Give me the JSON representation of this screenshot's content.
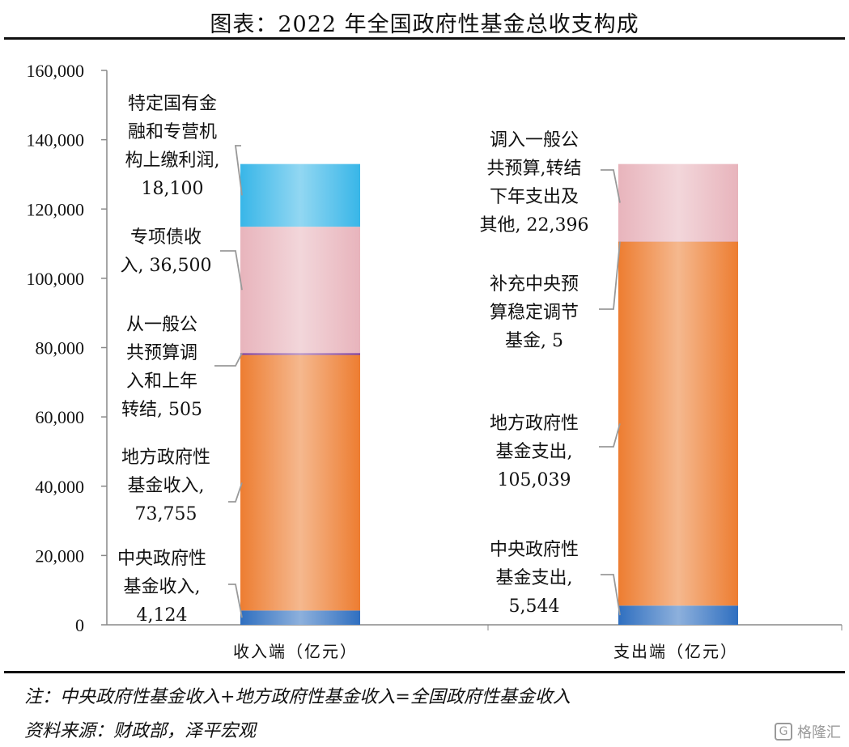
{
  "title": "图表：2022 年全国政府性基金总收支构成",
  "chart_data": {
    "type": "bar",
    "stacked": true,
    "ylim": [
      0,
      160000
    ],
    "yticks": [
      0,
      20000,
      40000,
      60000,
      80000,
      100000,
      120000,
      140000,
      160000
    ],
    "ytick_labels": [
      "0",
      "20,000",
      "40,000",
      "60,000",
      "80,000",
      "100,000",
      "120,000",
      "140,000",
      "160,000"
    ],
    "categories": [
      "收入端（亿元）",
      "支出端（亿元）"
    ],
    "stacks": [
      {
        "category": "收入端（亿元）",
        "segments": [
          {
            "label": [
              "中央政府性",
              "基金收入,",
              "4,124"
            ],
            "value": 4124,
            "color": "#2f6fc0"
          },
          {
            "label": [
              "地方政府性",
              "基金收入,",
              "73,755"
            ],
            "value": 73755,
            "color": "#ed7d31"
          },
          {
            "label": [
              "从一般公",
              "共预算调",
              "入和上年",
              "转结, 505"
            ],
            "value": 505,
            "color": "#7b3fa0"
          },
          {
            "label": [
              "专项债收",
              "入, 36,500"
            ],
            "value": 36500,
            "color": "#e8b4bc"
          },
          {
            "label": [
              "特定国有金",
              "融和专营机",
              "构上缴利润,",
              "18,100"
            ],
            "value": 18100,
            "color": "#38b6e8"
          }
        ]
      },
      {
        "category": "支出端（亿元）",
        "segments": [
          {
            "label": [
              "中央政府性",
              "基金支出,",
              "5,544"
            ],
            "value": 5544,
            "color": "#2f6fc0"
          },
          {
            "label": [
              "地方政府性",
              "基金支出,",
              "105,039"
            ],
            "value": 105039,
            "color": "#ed7d31"
          },
          {
            "label": [
              "补充中央预",
              "算稳定调节",
              "基金, 5"
            ],
            "value": 5,
            "color": "#7b3fa0"
          },
          {
            "label": [
              "调入一般公",
              "共预算,转结",
              "下年支出及",
              "其他, 22,396"
            ],
            "value": 22396,
            "color": "#e8b4bc"
          }
        ]
      }
    ]
  },
  "notes": {
    "note1": "注：中央政府性基金收入+地方政府性基金收入=全国政府性基金收入",
    "note2": "资料来源：财政部，泽平宏观"
  },
  "watermark": {
    "text": "格隆汇",
    "icon": "logo-icon"
  }
}
